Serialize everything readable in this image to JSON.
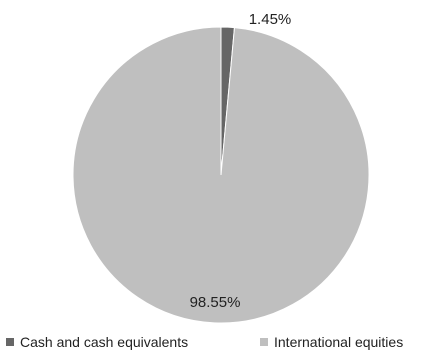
{
  "chart_data": {
    "type": "pie",
    "slices": [
      {
        "label": "Cash and cash equivalents",
        "value": 1.45,
        "display": "1.45%",
        "color": "#666666"
      },
      {
        "label": "International equities",
        "value": 98.55,
        "display": "98.55%",
        "color": "#bfbfbf"
      }
    ],
    "legend_position": "bottom"
  }
}
